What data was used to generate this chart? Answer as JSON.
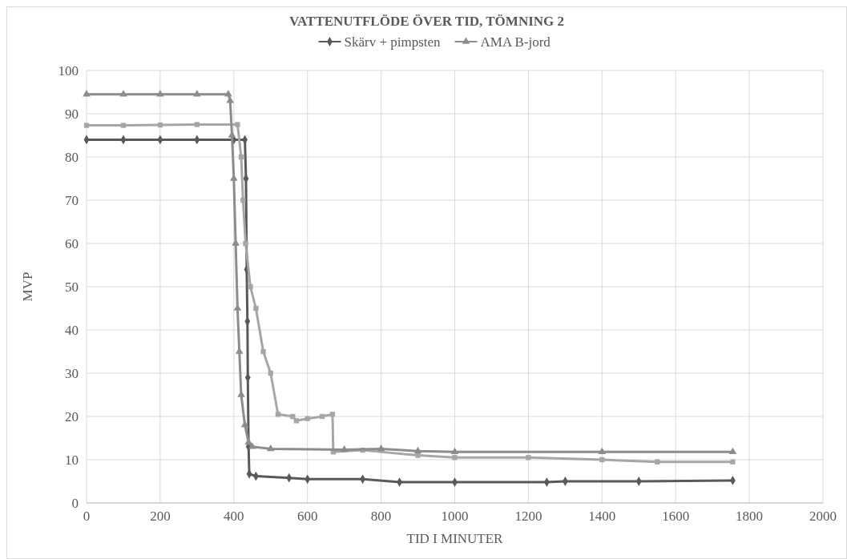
{
  "chart_data": {
    "type": "line",
    "title": "VATTENUTFLÖDE ÖVER TID, TÖMNING 2",
    "xlabel": "TID I MINUTER",
    "ylabel": "MVP",
    "xlim": [
      0,
      2000
    ],
    "ylim": [
      0,
      100
    ],
    "xticks": [
      0,
      200,
      400,
      600,
      800,
      1000,
      1200,
      1400,
      1600,
      1800,
      2000
    ],
    "yticks": [
      0,
      10,
      20,
      30,
      40,
      50,
      60,
      70,
      80,
      90,
      100
    ],
    "grid": true,
    "legend": "top",
    "series": [
      {
        "name": "Skärv + pimpsten",
        "color": "#595959",
        "marker": "diamond",
        "x": [
          0,
          100,
          200,
          300,
          400,
          430,
          433,
          435,
          437,
          438,
          440,
          442,
          460,
          550,
          600,
          750,
          850,
          1000,
          1250,
          1300,
          1500,
          1755
        ],
        "values": [
          84,
          84,
          84,
          84,
          84,
          84,
          75,
          54,
          42,
          29,
          13,
          6.7,
          6.2,
          5.8,
          5.5,
          5.5,
          4.8,
          4.8,
          4.8,
          5,
          5,
          5.2
        ]
      },
      {
        "color": "#a6a6a6",
        "marker": "square",
        "x": [
          0,
          100,
          200,
          300,
          410,
          420,
          425,
          432,
          445,
          460,
          480,
          500,
          520,
          560,
          570,
          600,
          640,
          668,
          670,
          750,
          800,
          900,
          1000,
          1200,
          1400,
          1550,
          1755
        ],
        "values": [
          87.3,
          87.3,
          87.4,
          87.5,
          87.5,
          80,
          70,
          60,
          50,
          45,
          35,
          30,
          20.5,
          20,
          19,
          19.5,
          20,
          20.5,
          11.8,
          12.2,
          null,
          11,
          10.5,
          10.5,
          10,
          9.5,
          9.5
        ]
      },
      {
        "name": "AMA B-jord",
        "color": "#8c8c8c",
        "marker": "triangle",
        "x": [
          0,
          100,
          200,
          300,
          385,
          390,
          395,
          400,
          405,
          410,
          415,
          420,
          430,
          440,
          450,
          500,
          700,
          800,
          900,
          1000,
          1400,
          1755
        ],
        "values": [
          94.5,
          94.5,
          94.5,
          94.5,
          94.5,
          93,
          85,
          75,
          60,
          45,
          35,
          25,
          18,
          14,
          13,
          12.5,
          12.3,
          12.5,
          12,
          11.8,
          11.8,
          11.8
        ]
      }
    ]
  }
}
